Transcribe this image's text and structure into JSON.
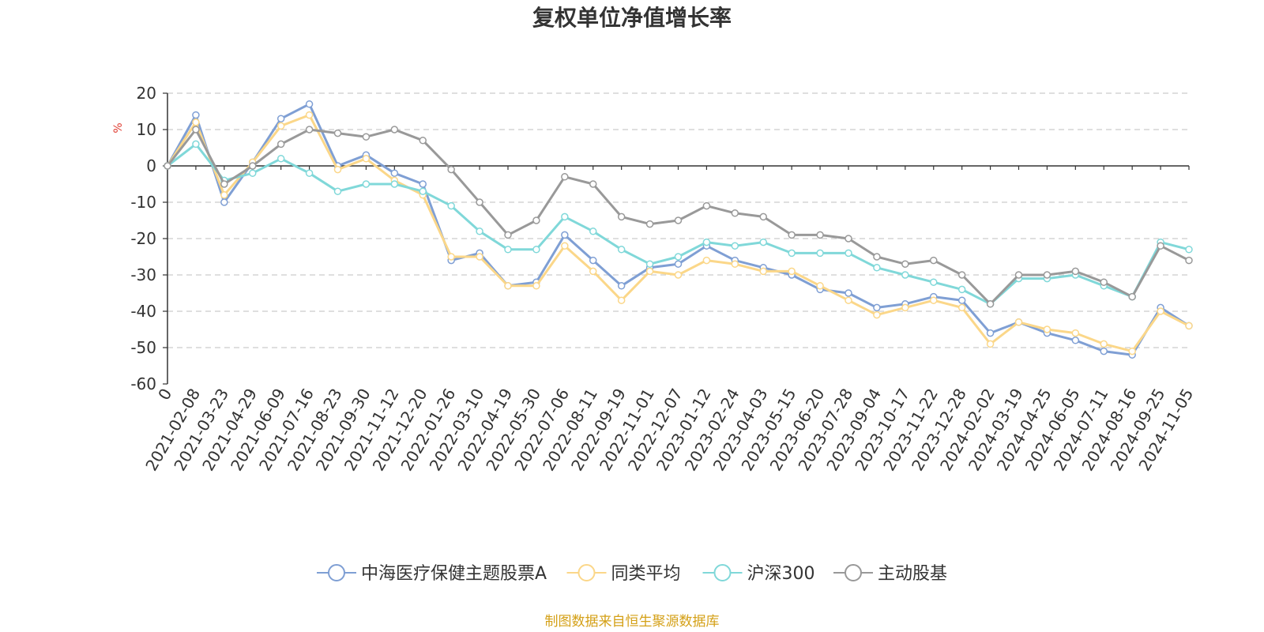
{
  "chart_data": {
    "type": "line",
    "title": "复权单位净值增长率",
    "ylabel": "%",
    "ylim": [
      -60,
      20
    ],
    "yticks": [
      20,
      10,
      0,
      -10,
      -20,
      -30,
      -40,
      -50,
      -60
    ],
    "categories": [
      "0",
      "2021-02-08",
      "2021-03-23",
      "2021-04-29",
      "2021-06-09",
      "2021-07-16",
      "2021-08-23",
      "2021-09-30",
      "2021-11-12",
      "2021-12-20",
      "2022-01-26",
      "2022-03-10",
      "2022-04-19",
      "2022-05-30",
      "2022-07-06",
      "2022-08-11",
      "2022-09-19",
      "2022-11-01",
      "2022-12-07",
      "2023-01-12",
      "2023-02-24",
      "2023-04-03",
      "2023-05-15",
      "2023-06-20",
      "2023-07-28",
      "2023-09-04",
      "2023-10-17",
      "2023-11-22",
      "2023-12-28",
      "2024-02-02",
      "2024-03-19",
      "2024-04-25",
      "2024-06-05",
      "2024-07-11",
      "2024-08-16",
      "2024-09-25",
      "2024-11-05"
    ],
    "grid": true,
    "legend_position": "bottom",
    "series": [
      {
        "name": "中海医疗保健主题股票A",
        "color": "#7f9fd4",
        "values": [
          0,
          14,
          -10,
          1,
          13,
          17,
          0,
          3,
          -2,
          -5,
          -26,
          -24,
          -33,
          -32,
          -19,
          -26,
          -33,
          -28,
          -27,
          -22,
          -26,
          -28,
          -30,
          -34,
          -35,
          -39,
          -38,
          -36,
          -37,
          -46,
          -43,
          -46,
          -48,
          -51,
          -52,
          -39,
          -44
        ]
      },
      {
        "name": "同类平均",
        "color": "#fbd789",
        "values": [
          0,
          12,
          -8,
          1,
          11,
          14,
          -1,
          2,
          -4,
          -8,
          -25,
          -25,
          -33,
          -33,
          -22,
          -29,
          -37,
          -29,
          -30,
          -26,
          -27,
          -29,
          -29,
          -33,
          -37,
          -41,
          -39,
          -37,
          -39,
          -49,
          -43,
          -45,
          -46,
          -49,
          -51,
          -40,
          -44
        ]
      },
      {
        "name": "沪深300",
        "color": "#80d8d9",
        "values": [
          0,
          6,
          -4,
          -2,
          2,
          -2,
          -7,
          -5,
          -5,
          -7,
          -11,
          -18,
          -23,
          -23,
          -14,
          -18,
          -23,
          -27,
          -25,
          -21,
          -22,
          -21,
          -24,
          -24,
          -24,
          -28,
          -30,
          -32,
          -34,
          -38,
          -31,
          -31,
          -30,
          -33,
          -36,
          -21,
          -23
        ]
      },
      {
        "name": "主动股基",
        "color": "#999999",
        "values": [
          0,
          10,
          -5,
          0,
          6,
          10,
          9,
          8,
          10,
          7,
          -1,
          -10,
          -19,
          -15,
          -3,
          -5,
          -14,
          -16,
          -15,
          -11,
          -13,
          -14,
          -19,
          -19,
          -20,
          -25,
          -27,
          -26,
          -30,
          -38,
          -30,
          -30,
          -29,
          -32,
          -36,
          -22,
          -26
        ]
      }
    ]
  },
  "legend": {
    "items": [
      {
        "label": "中海医疗保健主题股票A",
        "color": "#7f9fd4"
      },
      {
        "label": "同类平均",
        "color": "#fbd789"
      },
      {
        "label": "沪深300",
        "color": "#80d8d9"
      },
      {
        "label": "主动股基",
        "color": "#999999"
      }
    ]
  },
  "footer": {
    "source": "制图数据来自恒生聚源数据库",
    "color": "#d4a017"
  },
  "colors": {
    "axis": "#333333",
    "grid": "#cccccc",
    "ylabel": "#e03c31"
  }
}
